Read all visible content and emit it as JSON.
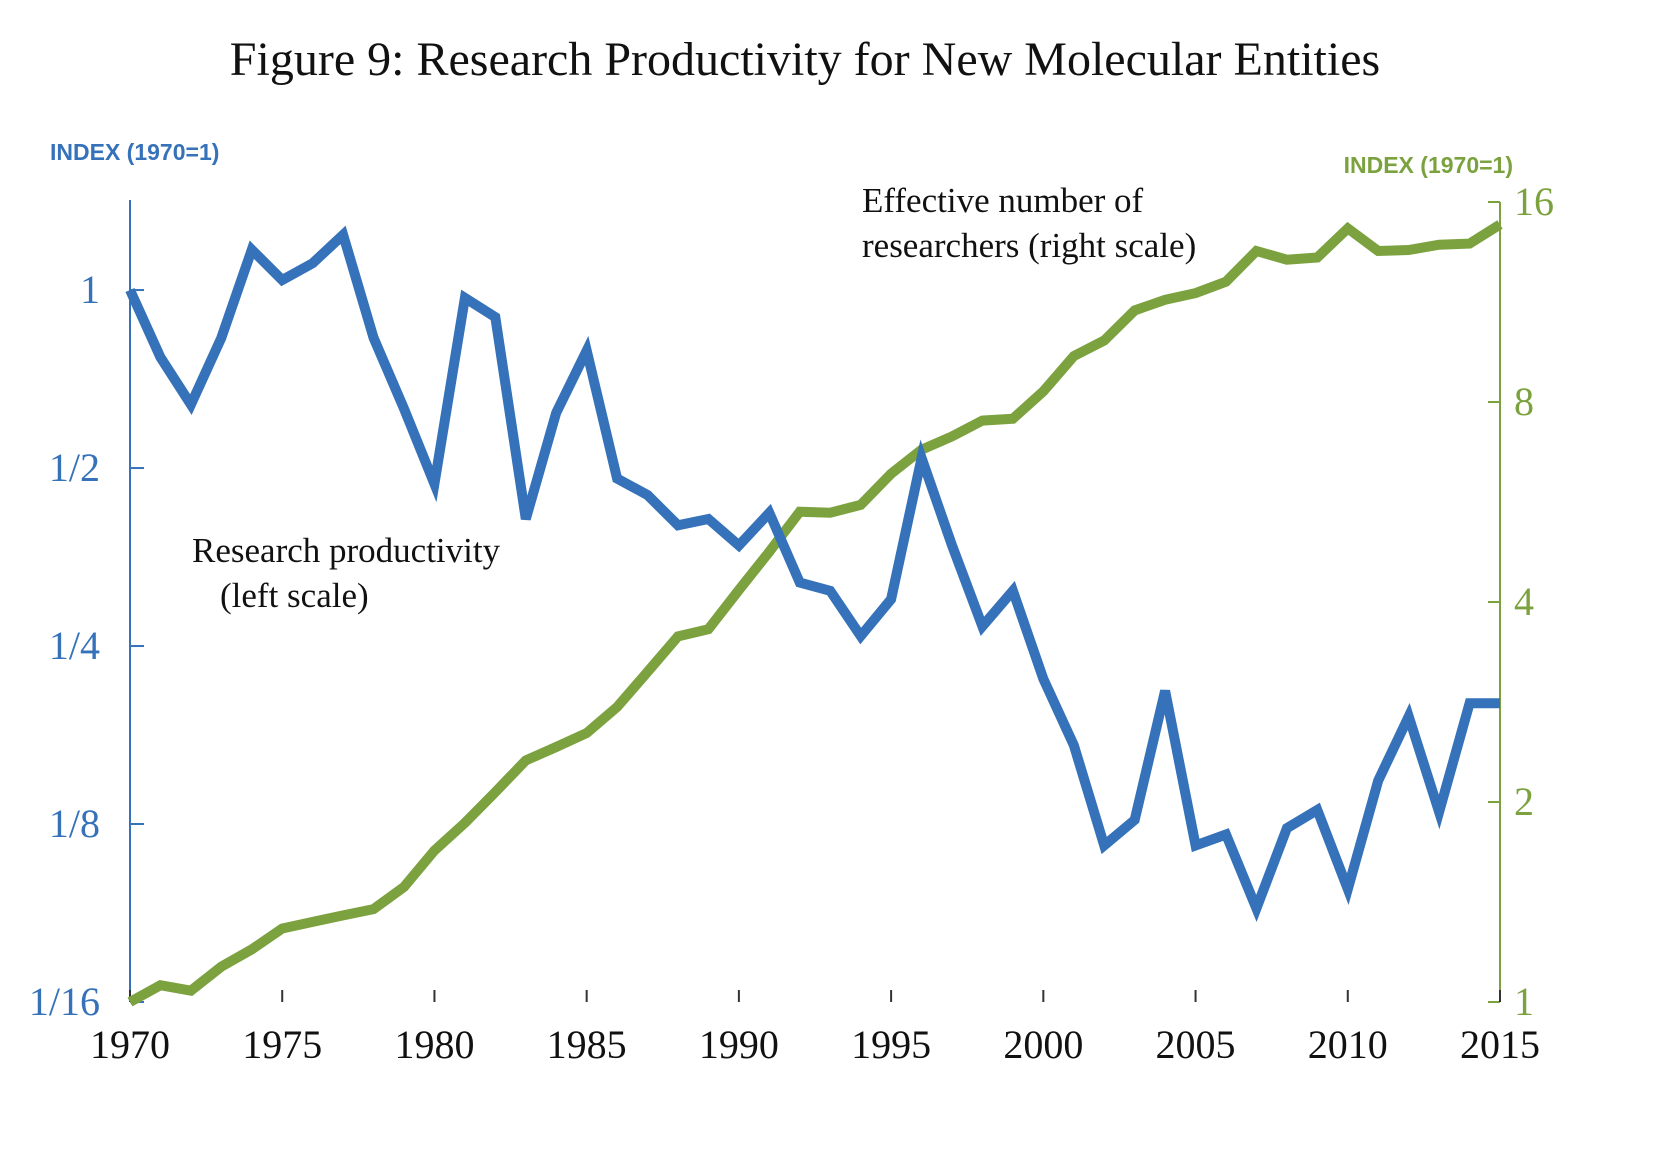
{
  "chart_data": {
    "type": "line",
    "title": "Figure 9: Research Productivity for New Molecular Entities",
    "y_label": "INDEX (1970=1)",
    "y2_label": "INDEX (1970=1)",
    "annotations": [
      {
        "lines": [
          "Effective number of",
          "researchers (right scale)"
        ]
      },
      {
        "lines": [
          "Research productivity",
          "(left scale)"
        ]
      }
    ],
    "x": [
      1970,
      1971,
      1972,
      1973,
      1974,
      1975,
      1976,
      1977,
      1978,
      1979,
      1980,
      1981,
      1982,
      1983,
      1984,
      1985,
      1986,
      1987,
      1988,
      1989,
      1990,
      1991,
      1992,
      1993,
      1994,
      1995,
      1996,
      1997,
      1998,
      1999,
      2000,
      2001,
      2002,
      2003,
      2004,
      2005,
      2006,
      2007,
      2008,
      2009,
      2010,
      2011,
      2012,
      2013,
      2014,
      2015
    ],
    "series": [
      {
        "color": "#3572b9",
        "axis": "y",
        "values": [
          1,
          0.77,
          0.64,
          0.83,
          1.17,
          1.04,
          1.11,
          1.24,
          0.83,
          0.63,
          0.47,
          0.97,
          0.9,
          0.41,
          0.62,
          0.79,
          0.48,
          0.45,
          0.4,
          0.41,
          0.37,
          0.42,
          0.32,
          0.31,
          0.26,
          0.3,
          0.52,
          0.37,
          0.27,
          0.31,
          0.22,
          0.17,
          0.115,
          0.127,
          0.21,
          0.115,
          0.12,
          0.09,
          0.123,
          0.132,
          0.097,
          0.148,
          0.19,
          0.131,
          0.2,
          0.2
        ]
      },
      {
        "color": "#7ba23f",
        "axis": "y2",
        "values": [
          1,
          1.06,
          1.04,
          1.13,
          1.2,
          1.29,
          1.32,
          1.35,
          1.38,
          1.49,
          1.69,
          1.86,
          2.07,
          2.31,
          2.42,
          2.54,
          2.78,
          3.14,
          3.55,
          3.64,
          4.17,
          4.76,
          5.47,
          5.45,
          5.6,
          6.24,
          6.78,
          7.1,
          7.5,
          7.55,
          8.3,
          9.38,
          9.9,
          10.99,
          11.4,
          11.67,
          12.14,
          13.5,
          13.1,
          13.2,
          14.6,
          13.5,
          13.55,
          13.8,
          13.85,
          14.8
        ]
      }
    ],
    "xlim": [
      1970,
      2015
    ],
    "xticks": [
      1970,
      1975,
      1980,
      1985,
      1990,
      1995,
      2000,
      2005,
      2010,
      2015
    ],
    "ylim": [
      0.0625,
      1.42
    ],
    "yscale": "log",
    "yticks": [
      {
        "value": 0.0625,
        "label": "1/16"
      },
      {
        "value": 0.125,
        "label": "1/8"
      },
      {
        "value": 0.25,
        "label": "1/4"
      },
      {
        "value": 0.5,
        "label": "1/2"
      },
      1
    ],
    "y2lim": [
      1,
      16
    ],
    "y2scale": "log",
    "y2ticks": [
      1,
      2,
      4,
      8,
      16
    ]
  }
}
